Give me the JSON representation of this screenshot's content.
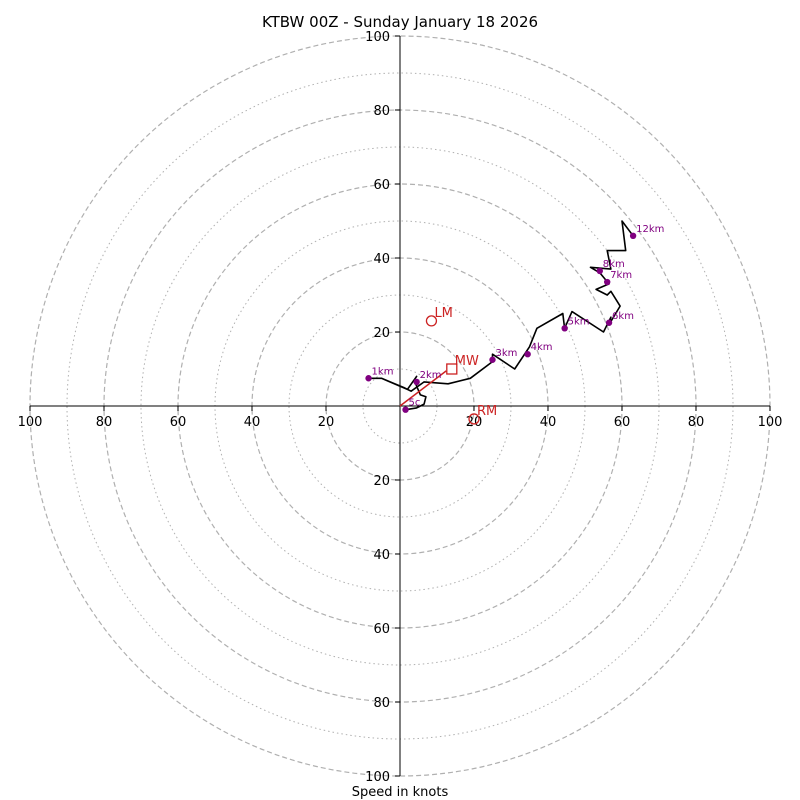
{
  "chart_data": {
    "type": "hodograph",
    "title": "KTBW 00Z - Sunday January 18 2026",
    "xlabel": "Speed in knots",
    "units": "knots",
    "range": [
      -100,
      100
    ],
    "rings_dashed": [
      20,
      40,
      60,
      80,
      100
    ],
    "rings_dotted": [
      10,
      30,
      50,
      70,
      90
    ],
    "tick_labels": [
      {
        "value": -100,
        "label": "100"
      },
      {
        "value": -80,
        "label": "80"
      },
      {
        "value": -60,
        "label": "60"
      },
      {
        "value": -40,
        "label": "40"
      },
      {
        "value": -20,
        "label": "20"
      },
      {
        "value": 20,
        "label": "20"
      },
      {
        "value": 40,
        "label": "40"
      },
      {
        "value": 60,
        "label": "60"
      },
      {
        "value": 80,
        "label": "80"
      },
      {
        "value": 100,
        "label": "100"
      }
    ],
    "colors": {
      "trace": "#000000",
      "height_marker": "#800080",
      "motion": "#cc2222",
      "ring": "#b0b0b0"
    },
    "trace": [
      [
        1.5,
        -1
      ],
      [
        4.5,
        -0.5
      ],
      [
        6.5,
        0.5
      ],
      [
        7,
        2.5
      ],
      [
        5.5,
        3
      ],
      [
        3.8,
        7
      ],
      [
        4.5,
        8
      ],
      [
        2,
        4.5
      ],
      [
        -5,
        7.5
      ],
      [
        -8.5,
        7.5
      ],
      [
        -5,
        7.5
      ],
      [
        1,
        5
      ],
      [
        3,
        4
      ],
      [
        6.5,
        6.5
      ],
      [
        13,
        6
      ],
      [
        19,
        7.5
      ],
      [
        25,
        12
      ],
      [
        25,
        14
      ],
      [
        31,
        10
      ],
      [
        35,
        16
      ],
      [
        37,
        21
      ],
      [
        44,
        25
      ],
      [
        44.5,
        21
      ],
      [
        46.5,
        25.5
      ],
      [
        55,
        20
      ],
      [
        57,
        24
      ],
      [
        56.5,
        22
      ],
      [
        59.5,
        27
      ],
      [
        57,
        31
      ],
      [
        56,
        30
      ],
      [
        53,
        31.5
      ],
      [
        56.5,
        33
      ],
      [
        54,
        36
      ],
      [
        51.5,
        37.5
      ],
      [
        57,
        37
      ],
      [
        56,
        42
      ],
      [
        61,
        42
      ],
      [
        60,
        50
      ],
      [
        63,
        46
      ]
    ],
    "height_markers": [
      {
        "label": "5c",
        "u": 1.5,
        "v": -1
      },
      {
        "label": "1km",
        "u": -8.5,
        "v": 7.5
      },
      {
        "label": "2km",
        "u": 4.5,
        "v": 6.5
      },
      {
        "label": "3km",
        "u": 25,
        "v": 12.5
      },
      {
        "label": "4km",
        "u": 34.5,
        "v": 14
      },
      {
        "label": "5km",
        "u": 44.5,
        "v": 21
      },
      {
        "label": "6km",
        "u": 56.5,
        "v": 22.5
      },
      {
        "label": "7km",
        "u": 56,
        "v": 33.5
      },
      {
        "label": "8km",
        "u": 54,
        "v": 36.5
      },
      {
        "label": "12km",
        "u": 63,
        "v": 46
      }
    ],
    "storm_motion": [
      {
        "label": "LM",
        "u": 8.5,
        "v": 23,
        "marker": "circle"
      },
      {
        "label": "MW",
        "u": 14,
        "v": 10,
        "marker": "square"
      },
      {
        "label": "RM",
        "u": 20,
        "v": -3.5,
        "marker": "circle"
      }
    ],
    "mean_wind_vector": {
      "u": 12.5,
      "v": 9.5
    }
  }
}
